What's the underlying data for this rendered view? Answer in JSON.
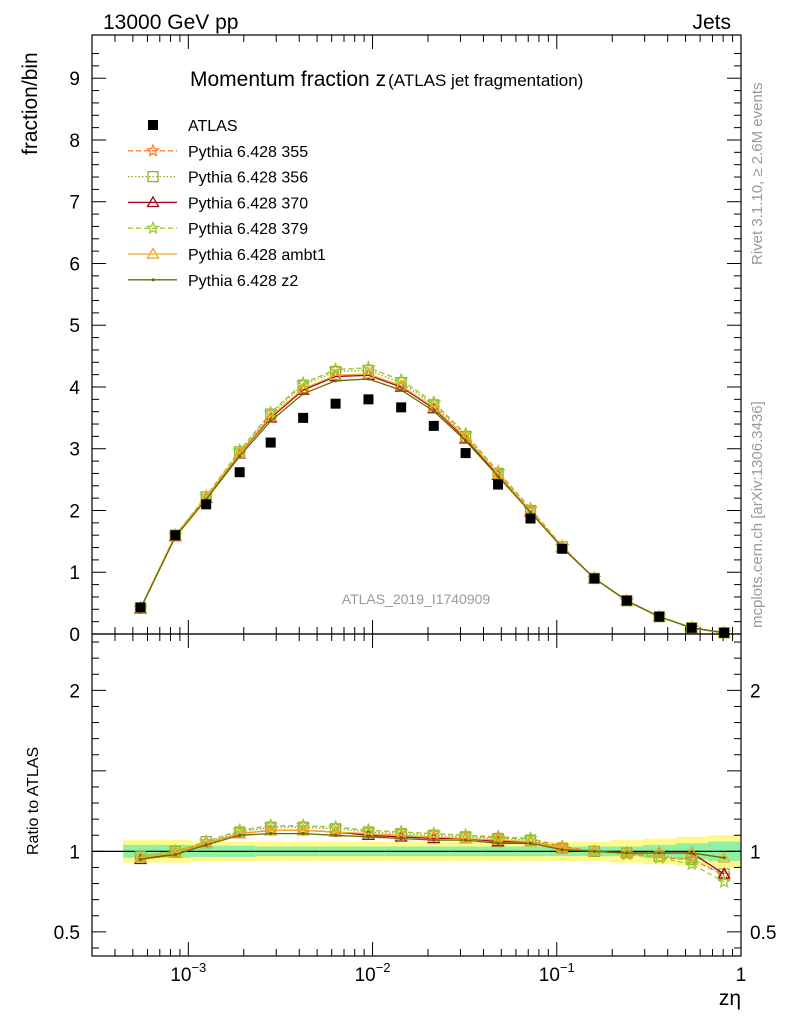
{
  "header": {
    "energy_label": "13000 GeV pp",
    "process_label": "Jets"
  },
  "side_labels": {
    "rivet": "Rivet 3.1.10, ≥ 2.6M events",
    "source": "mcplots.cern.ch [arXiv:1306.3436]"
  },
  "chart_data": [
    {
      "type": "scatter",
      "panel": "main",
      "title_main": "Momentum fraction z",
      "title_sub": "(ATLAS jet fragmentation)",
      "ylabel": "fraction/bin",
      "xscale": "log",
      "xlim": [
        0.0003,
        1.0
      ],
      "ylim": [
        0,
        9.7
      ],
      "yticks": [
        "0",
        "1",
        "2",
        "3",
        "4",
        "5",
        "6",
        "7",
        "8",
        "9"
      ],
      "watermark": "ATLAS_2019_I1740909",
      "x": [
        0.00055,
        0.00085,
        0.00125,
        0.0019,
        0.0028,
        0.0042,
        0.0063,
        0.0095,
        0.0143,
        0.0215,
        0.032,
        0.048,
        0.072,
        0.107,
        0.16,
        0.24,
        0.36,
        0.54,
        0.81
      ],
      "legend": [
        "ATLAS",
        "Pythia 6.428 355",
        "Pythia 6.428 356",
        "Pythia 6.428 370",
        "Pythia 6.428 379",
        "Pythia 6.428 ambt1",
        "Pythia 6.428 z2"
      ],
      "series": [
        {
          "name": "ATLAS",
          "color": "#000000",
          "marker": "square",
          "values": [
            0.43,
            1.6,
            2.1,
            2.62,
            3.1,
            3.5,
            3.73,
            3.8,
            3.67,
            3.37,
            2.93,
            2.42,
            1.87,
            1.38,
            0.9,
            0.54,
            0.28,
            0.1,
            0.02
          ]
        },
        {
          "name": "Pythia 6.428 355",
          "color": "#ff7f27",
          "marker": "star",
          "dash": "5,3",
          "values": [
            0.42,
            1.6,
            2.23,
            2.97,
            3.58,
            4.06,
            4.28,
            4.31,
            4.11,
            3.75,
            3.24,
            2.63,
            2.03,
            1.42,
            0.9,
            0.54,
            0.28,
            0.1,
            0.02
          ]
        },
        {
          "name": "Pythia 6.428 356",
          "color": "#8db32b",
          "marker": "square-open",
          "dash": "1.5,2",
          "values": [
            0.42,
            1.6,
            2.22,
            2.95,
            3.56,
            4.03,
            4.25,
            4.27,
            4.07,
            3.71,
            3.2,
            2.6,
            2.0,
            1.41,
            0.9,
            0.54,
            0.28,
            0.1,
            0.02
          ]
        },
        {
          "name": "Pythia 6.428 370",
          "color": "#a3001b",
          "marker": "triangle-open",
          "dash": "",
          "values": [
            0.41,
            1.58,
            2.2,
            2.92,
            3.5,
            3.95,
            4.17,
            4.19,
            4.0,
            3.65,
            3.16,
            2.57,
            1.98,
            1.4,
            0.9,
            0.54,
            0.28,
            0.1,
            0.02
          ]
        },
        {
          "name": "Pythia 6.428 379",
          "color": "#9acd32",
          "marker": "star",
          "dash": "5,3",
          "values": [
            0.42,
            1.6,
            2.23,
            2.97,
            3.58,
            4.06,
            4.28,
            4.31,
            4.11,
            3.74,
            3.23,
            2.62,
            2.02,
            1.41,
            0.9,
            0.53,
            0.28,
            0.09,
            0.02
          ]
        },
        {
          "name": "Pythia 6.428 ambt1",
          "color": "#f5a623",
          "marker": "triangle-open",
          "dash": "",
          "values": [
            0.42,
            1.59,
            2.21,
            2.93,
            3.52,
            3.97,
            4.19,
            4.21,
            4.02,
            3.67,
            3.18,
            2.59,
            1.99,
            1.41,
            0.9,
            0.54,
            0.28,
            0.1,
            0.02
          ]
        },
        {
          "name": "Pythia 6.428 z2",
          "color": "#6b6b00",
          "marker": "dot",
          "dash": "",
          "values": [
            0.41,
            1.57,
            2.18,
            2.88,
            3.45,
            3.89,
            4.1,
            4.13,
            3.95,
            3.61,
            3.13,
            2.55,
            1.97,
            1.4,
            0.9,
            0.54,
            0.28,
            0.1,
            0.02
          ]
        }
      ]
    },
    {
      "type": "line",
      "panel": "ratio",
      "ylabel": "Ratio to ATLAS",
      "xlabel": "zη",
      "xscale": "log",
      "xlim": [
        0.0003,
        1.0
      ],
      "ylim": [
        0.35,
        2.35
      ],
      "yticks": [
        "0.5",
        "1",
        "2"
      ],
      "xticks": [
        "10−3",
        "10−2",
        "10−1",
        "1"
      ],
      "x": [
        0.00055,
        0.00085,
        0.00125,
        0.0019,
        0.0028,
        0.0042,
        0.0063,
        0.0095,
        0.0143,
        0.0215,
        0.032,
        0.048,
        0.072,
        0.107,
        0.16,
        0.24,
        0.36,
        0.54,
        0.81
      ],
      "band_inner_half": [
        0.04,
        0.04,
        0.035,
        0.035,
        0.03,
        0.03,
        0.03,
        0.03,
        0.03,
        0.03,
        0.03,
        0.03,
        0.03,
        0.03,
        0.03,
        0.03,
        0.04,
        0.05,
        0.06
      ],
      "band_outer_half": [
        0.07,
        0.07,
        0.06,
        0.06,
        0.06,
        0.06,
        0.06,
        0.06,
        0.06,
        0.06,
        0.06,
        0.06,
        0.06,
        0.06,
        0.06,
        0.07,
        0.08,
        0.09,
        0.1
      ],
      "series": [
        {
          "name": "Pythia 6.428 355",
          "color": "#ff7f27",
          "marker": "star",
          "dash": "5,3",
          "values": [
            0.97,
            1.0,
            1.06,
            1.13,
            1.16,
            1.16,
            1.15,
            1.13,
            1.12,
            1.11,
            1.1,
            1.09,
            1.08,
            1.03,
            1.0,
            0.99,
            0.96,
            0.95,
            0.85
          ]
        },
        {
          "name": "Pythia 6.428 356",
          "color": "#8db32b",
          "marker": "square-open",
          "dash": "1.5,2",
          "values": [
            0.97,
            1.0,
            1.06,
            1.12,
            1.15,
            1.15,
            1.14,
            1.12,
            1.11,
            1.1,
            1.09,
            1.08,
            1.07,
            1.02,
            1.0,
            0.99,
            0.97,
            0.95,
            0.86
          ]
        },
        {
          "name": "Pythia 6.428 370",
          "color": "#a3001b",
          "marker": "triangle-open",
          "dash": "",
          "values": [
            0.95,
            0.99,
            1.05,
            1.11,
            1.13,
            1.13,
            1.12,
            1.1,
            1.09,
            1.08,
            1.08,
            1.06,
            1.06,
            1.02,
            1.0,
            0.99,
            0.99,
            0.99,
            0.86
          ]
        },
        {
          "name": "Pythia 6.428 379",
          "color": "#9acd32",
          "marker": "star",
          "dash": "5,3",
          "values": [
            0.97,
            1.0,
            1.06,
            1.13,
            1.16,
            1.16,
            1.15,
            1.13,
            1.12,
            1.11,
            1.1,
            1.08,
            1.08,
            1.02,
            1.0,
            0.98,
            0.96,
            0.92,
            0.81
          ]
        },
        {
          "name": "Pythia 6.428 ambt1",
          "color": "#f5a623",
          "marker": "triangle-open",
          "dash": "",
          "values": [
            0.96,
            0.99,
            1.05,
            1.11,
            1.13,
            1.13,
            1.12,
            1.11,
            1.1,
            1.09,
            1.08,
            1.07,
            1.06,
            1.02,
            1.0,
            0.99,
            0.99,
            0.99,
            0.96
          ]
        },
        {
          "name": "Pythia 6.428 z2",
          "color": "#6b6b00",
          "marker": "dot",
          "dash": "",
          "values": [
            0.95,
            0.98,
            1.04,
            1.1,
            1.11,
            1.11,
            1.1,
            1.09,
            1.08,
            1.07,
            1.07,
            1.05,
            1.05,
            1.01,
            1.0,
            0.99,
            0.99,
            0.99,
            0.96
          ]
        }
      ]
    }
  ]
}
